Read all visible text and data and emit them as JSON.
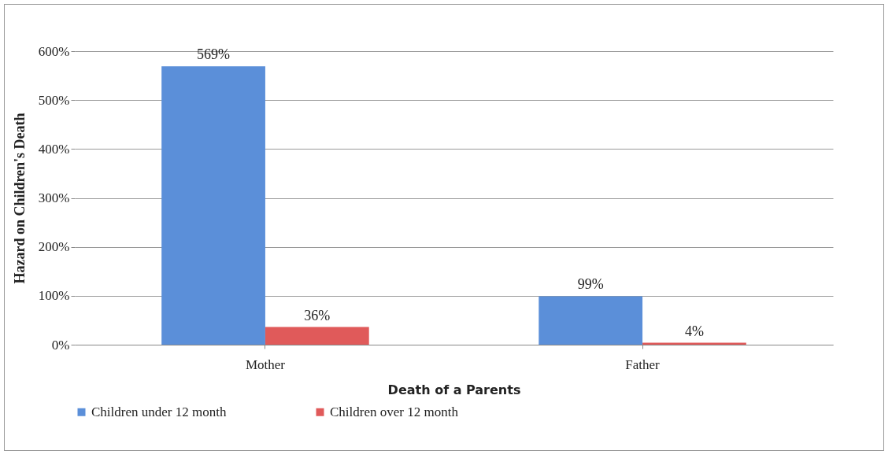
{
  "chart_data": {
    "type": "bar",
    "xlabel": "Death of a Parents",
    "ylabel": "Hazard on Children's Death",
    "categories": [
      "Mother",
      "Father"
    ],
    "series": [
      {
        "name": "Children under 12 month",
        "color": "#5b8fd9",
        "values": [
          569,
          99
        ],
        "value_labels": [
          "569%",
          "99%"
        ]
      },
      {
        "name": "Children over 12 month",
        "color": "#e05a5a",
        "values": [
          36,
          4
        ],
        "value_labels": [
          "36%",
          "4%"
        ]
      }
    ],
    "ylim": [
      0,
      600
    ],
    "yticks": [
      {
        "value": 0,
        "label": "0%"
      },
      {
        "value": 100,
        "label": "100%"
      },
      {
        "value": 200,
        "label": "200%"
      },
      {
        "value": 300,
        "label": "300%"
      },
      {
        "value": 400,
        "label": "400%"
      },
      {
        "value": 500,
        "label": "500%"
      },
      {
        "value": 600,
        "label": "600%"
      }
    ],
    "grid": "y",
    "legend": "bottom"
  }
}
